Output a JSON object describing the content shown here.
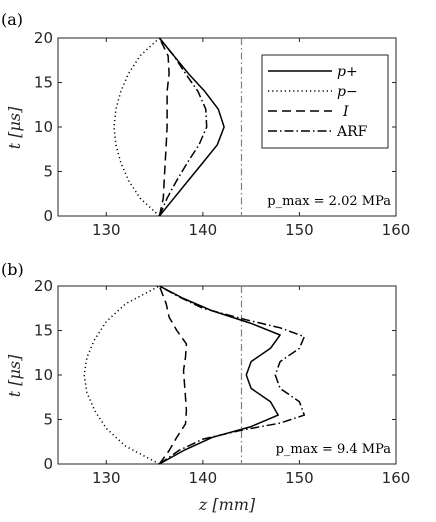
{
  "chart_data": [
    {
      "type": "line",
      "panel_label": "(a)",
      "xlabel": "",
      "ylabel": "t [μs]",
      "xlim": [
        125,
        160
      ],
      "ylim": [
        0,
        20
      ],
      "xticks": [
        "130",
        "140",
        "150",
        "160"
      ],
      "yticks": [
        "0",
        "5",
        "10",
        "15",
        "20"
      ],
      "annotation": "p_max = 2.02 MPa",
      "vline_x": 144,
      "legend": {
        "position": "top-right",
        "entries": [
          "p+",
          "p−",
          "I",
          "ARF"
        ]
      },
      "series": [
        {
          "name": "p+",
          "style": "solid",
          "points": [
            [
              135.5,
              0
            ],
            [
              137.0,
              2
            ],
            [
              138.5,
              4
            ],
            [
              140.0,
              6
            ],
            [
              141.5,
              8
            ],
            [
              142.2,
              10
            ],
            [
              141.6,
              12
            ],
            [
              140.2,
              14
            ],
            [
              138.5,
              16
            ],
            [
              137.0,
              18
            ],
            [
              135.5,
              20
            ]
          ]
        },
        {
          "name": "p−",
          "style": "dotted",
          "points": [
            [
              135.5,
              0
            ],
            [
              133.5,
              2
            ],
            [
              132.3,
              4
            ],
            [
              131.5,
              6
            ],
            [
              131.0,
              8
            ],
            [
              130.8,
              10
            ],
            [
              131.0,
              12
            ],
            [
              131.5,
              14
            ],
            [
              132.3,
              16
            ],
            [
              133.5,
              18
            ],
            [
              135.5,
              20
            ]
          ]
        },
        {
          "name": "I",
          "style": "dashed",
          "points": [
            [
              135.5,
              0
            ],
            [
              135.9,
              2
            ],
            [
              136.0,
              4
            ],
            [
              136.1,
              6
            ],
            [
              136.2,
              8
            ],
            [
              136.3,
              10
            ],
            [
              136.3,
              12
            ],
            [
              136.3,
              14
            ],
            [
              136.5,
              16
            ],
            [
              136.4,
              18
            ],
            [
              135.5,
              20
            ]
          ]
        },
        {
          "name": "ARF",
          "style": "dashdot",
          "points": [
            [
              135.5,
              0
            ],
            [
              136.3,
              2
            ],
            [
              137.3,
              4
            ],
            [
              138.4,
              6
            ],
            [
              139.6,
              8
            ],
            [
              140.4,
              10
            ],
            [
              140.3,
              12
            ],
            [
              139.5,
              14
            ],
            [
              138.2,
              16
            ],
            [
              137.0,
              18
            ],
            [
              135.5,
              20
            ]
          ]
        }
      ]
    },
    {
      "type": "line",
      "panel_label": "(b)",
      "xlabel": "z [mm]",
      "ylabel": "t [μs]",
      "xlim": [
        125,
        160
      ],
      "ylim": [
        0,
        20
      ],
      "xticks": [
        "130",
        "140",
        "150",
        "160"
      ],
      "yticks": [
        "0",
        "5",
        "10",
        "15",
        "20"
      ],
      "annotation": "p_max = 9.4 MPa",
      "vline_x": 144,
      "series": [
        {
          "name": "p+",
          "style": "solid",
          "points": [
            [
              135.5,
              0
            ],
            [
              138.0,
              1.5
            ],
            [
              141.0,
              3.0
            ],
            [
              145.0,
              4.2
            ],
            [
              147.8,
              5.5
            ],
            [
              147.0,
              7.0
            ],
            [
              145.0,
              8.5
            ],
            [
              144.5,
              10.0
            ],
            [
              145.0,
              11.5
            ],
            [
              147.0,
              13.0
            ],
            [
              148.0,
              14.5
            ],
            [
              145.0,
              15.8
            ],
            [
              141.0,
              17.2
            ],
            [
              138.0,
              18.6
            ],
            [
              135.5,
              20
            ]
          ]
        },
        {
          "name": "p−",
          "style": "dotted",
          "points": [
            [
              135.5,
              0
            ],
            [
              132.0,
              2
            ],
            [
              130.0,
              4
            ],
            [
              128.8,
              6
            ],
            [
              128.0,
              8
            ],
            [
              127.7,
              10
            ],
            [
              128.0,
              12
            ],
            [
              128.8,
              14
            ],
            [
              130.0,
              16
            ],
            [
              132.0,
              18
            ],
            [
              135.5,
              20
            ]
          ]
        },
        {
          "name": "I",
          "style": "dashed",
          "points": [
            [
              135.5,
              0
            ],
            [
              136.5,
              1.5
            ],
            [
              137.3,
              3.0
            ],
            [
              138.2,
              4.5
            ],
            [
              138.3,
              6.0
            ],
            [
              138.2,
              7.5
            ],
            [
              138.1,
              9.0
            ],
            [
              138.0,
              10.5
            ],
            [
              138.2,
              12.0
            ],
            [
              138.3,
              13.5
            ],
            [
              137.3,
              15.0
            ],
            [
              136.5,
              16.5
            ],
            [
              136.2,
              18.0
            ],
            [
              135.5,
              20
            ]
          ]
        },
        {
          "name": "ARF",
          "style": "dashdot",
          "points": [
            [
              135.5,
              0
            ],
            [
              137.5,
              1.5
            ],
            [
              140.0,
              2.8
            ],
            [
              144.0,
              3.8
            ],
            [
              148.0,
              4.6
            ],
            [
              150.5,
              5.5
            ],
            [
              150.0,
              7.0
            ],
            [
              148.0,
              8.5
            ],
            [
              147.5,
              10.0
            ],
            [
              148.0,
              11.5
            ],
            [
              150.0,
              13.0
            ],
            [
              150.5,
              14.3
            ],
            [
              148.0,
              15.3
            ],
            [
              144.5,
              16.2
            ],
            [
              140.0,
              17.5
            ],
            [
              137.5,
              18.8
            ],
            [
              135.5,
              20
            ]
          ]
        }
      ]
    }
  ]
}
